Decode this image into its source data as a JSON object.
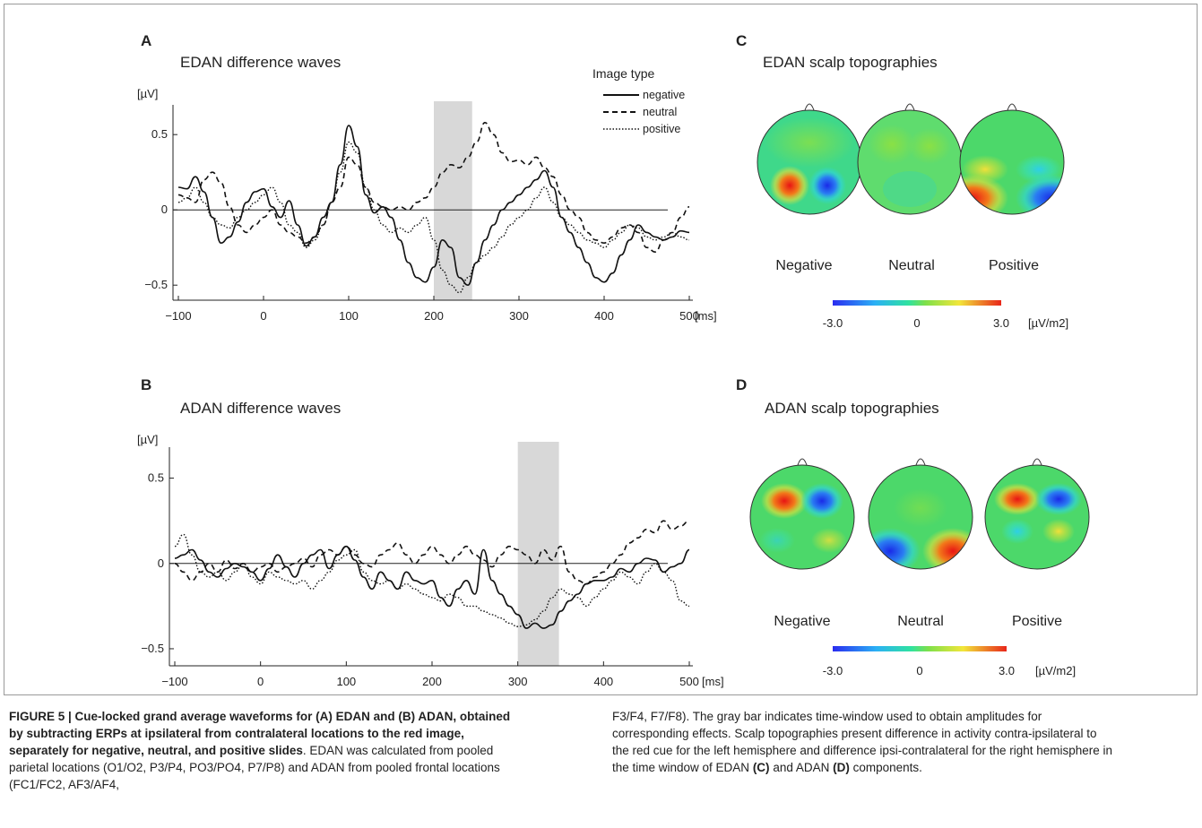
{
  "panels": {
    "A": {
      "letter": "A",
      "title": "EDAN difference waves"
    },
    "B": {
      "letter": "B",
      "title": "ADAN difference waves"
    },
    "C": {
      "letter": "C",
      "title": "EDAN scalp topographies"
    },
    "D": {
      "letter": "D",
      "title": "ADAN scalp topographies"
    }
  },
  "axes": {
    "y_unit": "[µV]",
    "x_unit": "[ms]",
    "y_ticks": [
      "0.5",
      "0",
      "−0.5"
    ],
    "x_ticks": [
      "−100",
      "0",
      "100",
      "200",
      "300",
      "400",
      "500"
    ]
  },
  "legend": {
    "title": "Image type",
    "items": [
      "negative",
      "neutral",
      "positive"
    ]
  },
  "topo": {
    "labels": [
      "Negative",
      "Neutral",
      "Positive"
    ],
    "scale_min": "-3.0",
    "scale_mid": "0",
    "scale_max": "3.0",
    "scale_unit": "[µV/m2]"
  },
  "chart_data": [
    {
      "type": "line",
      "panel": "A",
      "title": "EDAN difference waves",
      "xlabel": "[ms]",
      "ylabel": "[µV]",
      "xlim": [
        -100,
        500
      ],
      "ylim": [
        -0.6,
        0.65
      ],
      "highlight_window": [
        200,
        245
      ],
      "x": [
        -100,
        -90,
        -80,
        -70,
        -60,
        -50,
        -40,
        -30,
        -20,
        -10,
        0,
        10,
        20,
        30,
        40,
        50,
        60,
        70,
        80,
        90,
        100,
        110,
        120,
        130,
        140,
        150,
        160,
        170,
        180,
        190,
        200,
        210,
        220,
        230,
        240,
        250,
        260,
        270,
        280,
        290,
        300,
        310,
        320,
        330,
        340,
        350,
        360,
        370,
        380,
        390,
        400,
        410,
        420,
        430,
        440,
        450,
        460,
        470,
        480,
        490,
        500
      ],
      "series": [
        {
          "name": "negative",
          "values": [
            0.15,
            0.14,
            0.22,
            0.12,
            -0.05,
            -0.22,
            -0.18,
            -0.08,
            0.05,
            0.12,
            0.14,
            0.02,
            -0.05,
            0.06,
            -0.1,
            -0.24,
            -0.18,
            -0.05,
            0.05,
            0.3,
            0.56,
            0.42,
            0.1,
            -0.02,
            0.02,
            -0.05,
            -0.2,
            -0.35,
            -0.45,
            -0.48,
            -0.38,
            -0.2,
            -0.25,
            -0.45,
            -0.5,
            -0.35,
            -0.2,
            -0.1,
            0.0,
            0.05,
            0.1,
            0.15,
            0.2,
            0.26,
            0.15,
            -0.05,
            -0.15,
            -0.25,
            -0.35,
            -0.45,
            -0.48,
            -0.42,
            -0.3,
            -0.2,
            -0.1,
            -0.15,
            -0.18,
            -0.2,
            -0.18,
            -0.14,
            -0.15
          ]
        },
        {
          "name": "neutral",
          "values": [
            0.1,
            0.08,
            0.05,
            0.2,
            0.25,
            0.18,
            0.02,
            -0.1,
            -0.15,
            -0.1,
            -0.05,
            0.0,
            -0.1,
            -0.15,
            -0.18,
            -0.22,
            -0.18,
            -0.1,
            0.05,
            0.15,
            0.35,
            0.3,
            0.15,
            0.05,
            0.02,
            0.0,
            0.02,
            0.0,
            0.05,
            0.08,
            0.15,
            0.25,
            0.3,
            0.28,
            0.35,
            0.45,
            0.58,
            0.5,
            0.38,
            0.32,
            0.33,
            0.3,
            0.35,
            0.28,
            0.22,
            0.1,
            0.0,
            -0.05,
            -0.15,
            -0.2,
            -0.22,
            -0.18,
            -0.12,
            -0.1,
            -0.15,
            -0.25,
            -0.28,
            -0.2,
            -0.15,
            -0.05,
            0.02
          ]
        },
        {
          "name": "positive",
          "values": [
            0.05,
            0.08,
            0.15,
            0.05,
            -0.05,
            -0.1,
            -0.12,
            -0.05,
            0.0,
            0.05,
            0.1,
            0.15,
            0.05,
            -0.1,
            -0.15,
            -0.25,
            -0.2,
            -0.1,
            0.05,
            0.25,
            0.45,
            0.38,
            0.15,
            0.0,
            -0.1,
            -0.15,
            -0.12,
            -0.15,
            -0.1,
            -0.05,
            -0.2,
            -0.4,
            -0.5,
            -0.55,
            -0.45,
            -0.35,
            -0.3,
            -0.25,
            -0.18,
            -0.1,
            -0.05,
            0.0,
            0.08,
            0.15,
            0.05,
            -0.05,
            -0.1,
            -0.15,
            -0.2,
            -0.22,
            -0.25,
            -0.2,
            -0.15,
            -0.1,
            -0.12,
            -0.18,
            -0.2,
            -0.18,
            -0.15,
            -0.18,
            -0.2
          ]
        }
      ]
    },
    {
      "type": "line",
      "panel": "B",
      "title": "ADAN difference waves",
      "xlabel": "[ms]",
      "ylabel": "[µV]",
      "xlim": [
        -100,
        500
      ],
      "ylim": [
        -0.6,
        0.65
      ],
      "highlight_window": [
        300,
        348
      ],
      "x": [
        -100,
        -90,
        -80,
        -70,
        -60,
        -50,
        -40,
        -30,
        -20,
        -10,
        0,
        10,
        20,
        30,
        40,
        50,
        60,
        70,
        80,
        90,
        100,
        110,
        120,
        130,
        140,
        150,
        160,
        170,
        180,
        190,
        200,
        210,
        220,
        230,
        240,
        250,
        260,
        270,
        280,
        290,
        300,
        310,
        320,
        330,
        340,
        350,
        360,
        370,
        380,
        390,
        400,
        410,
        420,
        430,
        440,
        450,
        460,
        470,
        480,
        490,
        500
      ],
      "series": [
        {
          "name": "negative",
          "values": [
            0.03,
            0.05,
            0.08,
            0.02,
            -0.05,
            -0.08,
            -0.03,
            0.0,
            -0.02,
            -0.05,
            -0.1,
            -0.03,
            0.05,
            -0.02,
            -0.08,
            0.0,
            0.05,
            0.08,
            -0.03,
            0.05,
            0.1,
            0.02,
            -0.08,
            -0.15,
            -0.05,
            -0.1,
            -0.15,
            -0.05,
            -0.1,
            -0.12,
            -0.1,
            -0.2,
            -0.25,
            -0.15,
            -0.1,
            -0.18,
            0.08,
            -0.1,
            -0.18,
            -0.25,
            -0.3,
            -0.38,
            -0.35,
            -0.38,
            -0.36,
            -0.28,
            -0.22,
            -0.18,
            -0.12,
            -0.1,
            -0.1,
            -0.08,
            -0.03,
            -0.05,
            0.0,
            0.03,
            0.02,
            -0.05,
            -0.02,
            0.0,
            0.08
          ]
        },
        {
          "name": "neutral",
          "values": [
            0.0,
            -0.05,
            -0.1,
            -0.05,
            0.0,
            -0.05,
            0.02,
            -0.03,
            0.0,
            -0.05,
            -0.02,
            0.0,
            -0.05,
            -0.02,
            0.0,
            0.03,
            -0.02,
            0.05,
            0.08,
            0.05,
            0.1,
            0.05,
            0.0,
            -0.02,
            0.05,
            0.08,
            0.12,
            0.05,
            0.0,
            0.05,
            0.1,
            0.05,
            0.0,
            0.05,
            0.1,
            0.05,
            0.02,
            -0.02,
            0.05,
            0.1,
            0.08,
            0.05,
            0.0,
            0.08,
            0.02,
            0.1,
            -0.05,
            -0.1,
            -0.12,
            -0.08,
            -0.05,
            0.0,
            0.05,
            0.12,
            0.15,
            0.2,
            0.18,
            0.25,
            0.2,
            0.22,
            0.25
          ]
        },
        {
          "name": "positive",
          "values": [
            0.1,
            0.17,
            0.05,
            -0.05,
            -0.08,
            -0.05,
            -0.1,
            -0.05,
            0.0,
            -0.08,
            -0.12,
            -0.05,
            -0.08,
            -0.1,
            -0.12,
            -0.1,
            -0.15,
            -0.1,
            -0.05,
            0.02,
            0.05,
            0.08,
            -0.05,
            -0.1,
            -0.12,
            -0.1,
            -0.15,
            -0.12,
            -0.15,
            -0.18,
            -0.2,
            -0.22,
            -0.18,
            -0.2,
            -0.25,
            -0.25,
            -0.28,
            -0.3,
            -0.32,
            -0.35,
            -0.37,
            -0.36,
            -0.33,
            -0.28,
            -0.2,
            -0.15,
            -0.18,
            -0.2,
            -0.25,
            -0.2,
            -0.15,
            -0.1,
            -0.05,
            -0.08,
            -0.12,
            -0.05,
            0.0,
            -0.05,
            -0.1,
            -0.22,
            -0.25
          ]
        }
      ]
    }
  ],
  "caption": {
    "left_bold": "FIGURE 5 | Cue-locked grand average waveforms for (A) EDAN and (B) ADAN, obtained by subtracting ERPs at ipsilateral from contralateral locations to the red image, separately for negative, neutral, and positive slides",
    "left_rest": ". EDAN was calculated from pooled parietal locations (O1/O2, P3/P4, PO3/PO4, P7/P8) and ADAN from pooled frontal locations (FC1/FC2, AF3/AF4,",
    "right_part1": "F3/F4, F7/F8). The gray bar indicates time-window used to obtain amplitudes for corresponding effects. Scalp topographies present difference in activity contra-ipsilateral to the red cue for the left hemisphere and difference ipsi-contralateral for the right hemisphere in the time window of EDAN ",
    "right_c": "(C)",
    "right_part2": " and ADAN ",
    "right_d": "(D)",
    "right_part3": " components."
  }
}
